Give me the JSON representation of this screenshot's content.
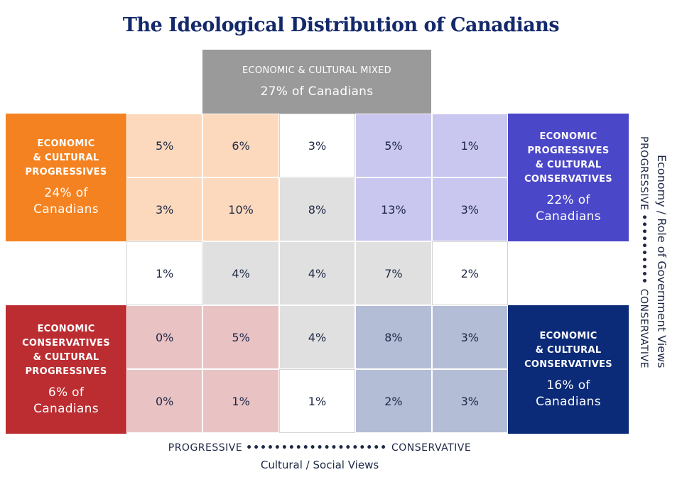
{
  "chart_data": {
    "type": "heatmap",
    "title": "The Ideological Distribution of Canadians",
    "xlabel": "Cultural / Social Views",
    "x_axis_ends": [
      "PROGRESSIVE",
      "CONSERVATIVE"
    ],
    "ylabel": "Economy / Role of Government Views",
    "y_axis_ends": [
      "PROGRESSIVE",
      "CONSERVATIVE"
    ],
    "cells": [
      [
        {
          "value": "5%",
          "tone": "peach"
        },
        {
          "value": "6%",
          "tone": "peach"
        },
        {
          "value": "3%",
          "tone": "white"
        },
        {
          "value": "5%",
          "tone": "lavender"
        },
        {
          "value": "1%",
          "tone": "lavender"
        }
      ],
      [
        {
          "value": "3%",
          "tone": "peach"
        },
        {
          "value": "10%",
          "tone": "peach"
        },
        {
          "value": "8%",
          "tone": "gray"
        },
        {
          "value": "13%",
          "tone": "lavender"
        },
        {
          "value": "3%",
          "tone": "lavender"
        }
      ],
      [
        {
          "value": "1%",
          "tone": "white"
        },
        {
          "value": "4%",
          "tone": "gray"
        },
        {
          "value": "4%",
          "tone": "gray"
        },
        {
          "value": "7%",
          "tone": "gray"
        },
        {
          "value": "2%",
          "tone": "white"
        }
      ],
      [
        {
          "value": "0%",
          "tone": "pink"
        },
        {
          "value": "5%",
          "tone": "pink"
        },
        {
          "value": "4%",
          "tone": "gray"
        },
        {
          "value": "8%",
          "tone": "bluegray"
        },
        {
          "value": "3%",
          "tone": "bluegray"
        }
      ],
      [
        {
          "value": "0%",
          "tone": "pink"
        },
        {
          "value": "1%",
          "tone": "pink"
        },
        {
          "value": "1%",
          "tone": "white"
        },
        {
          "value": "2%",
          "tone": "bluegray"
        },
        {
          "value": "3%",
          "tone": "bluegray"
        }
      ]
    ],
    "groups": {
      "mixed": {
        "label": "ECONOMIC & CULTURAL MIXED",
        "share": "27% of Canadians",
        "color": "#9a9a9a"
      },
      "progressives": {
        "label": [
          "ECONOMIC",
          "& CULTURAL",
          "PROGRESSIVES"
        ],
        "share": [
          "24% of",
          "Canadians"
        ],
        "color": "#f58220"
      },
      "econ_prog_cult_cons": {
        "label": [
          "ECONOMIC",
          "PROGRESSIVES",
          "& CULTURAL",
          "CONSERVATIVES"
        ],
        "share": [
          "22% of",
          "Canadians"
        ],
        "color": "#4b47c9"
      },
      "econ_cons_cult_prog": {
        "label": [
          "ECONOMIC",
          "CONSERVATIVES",
          "& CULTURAL",
          "PROGRESSIVES"
        ],
        "share": [
          "6% of",
          "Canadians"
        ],
        "color": "#bb2d31"
      },
      "conservatives": {
        "label": [
          "ECONOMIC",
          "& CULTURAL",
          "CONSERVATIVES"
        ],
        "share": [
          "16% of",
          "Canadians"
        ],
        "color": "#0b2a78"
      }
    },
    "tone_colors": {
      "peach": "#fcd9bd",
      "lavender": "#c9c6f0",
      "gray": "#e0e0e0",
      "pink": "#e9c2c4",
      "bluegray": "#b3bdd6",
      "white": "#ffffff"
    }
  }
}
